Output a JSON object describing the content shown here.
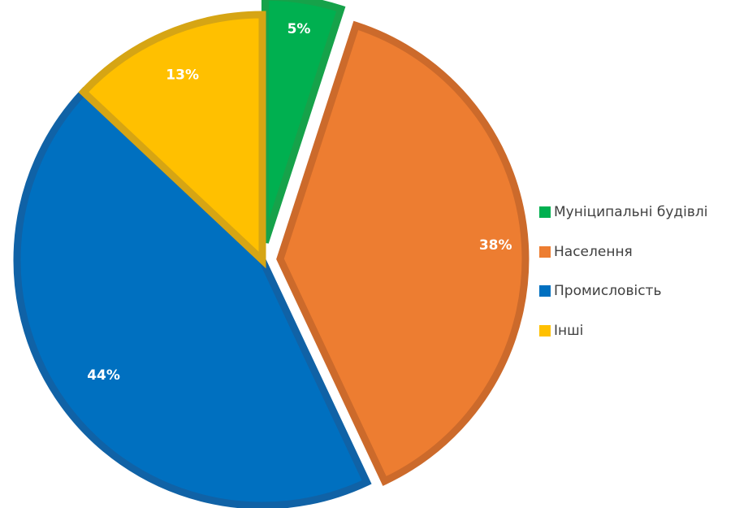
{
  "chart_data": {
    "type": "pie",
    "title": "",
    "slices": [
      {
        "label": "Муніципальні будівлі",
        "value": 5,
        "value_label": "5%",
        "color": "#00B050",
        "border": "#16A24A"
      },
      {
        "label": "Населення",
        "value": 38,
        "value_label": "38%",
        "color": "#ED7D31",
        "border": "#CC6A2B"
      },
      {
        "label": "Промисловість",
        "value": 44,
        "value_label": "44%",
        "color": "#0070C0",
        "border": "#1062A6"
      },
      {
        "label": "Інші",
        "value": 13,
        "value_label": "13%",
        "color": "#FFC000",
        "border": "#D6A514"
      }
    ],
    "legend_position": "right"
  }
}
